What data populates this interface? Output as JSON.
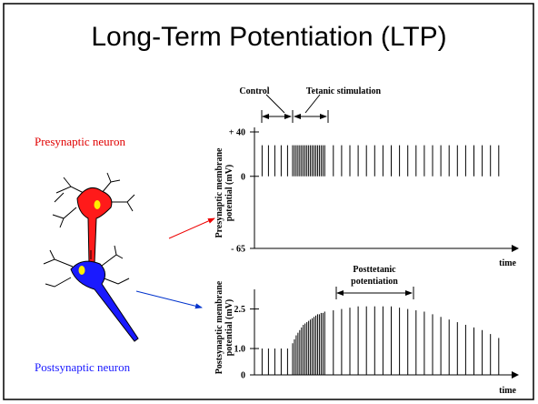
{
  "title": "Long-Term Potentiation (LTP)",
  "labels": {
    "presynaptic": "Presynaptic neuron",
    "postsynaptic": "Postsynaptic neuron"
  },
  "chart_data": [
    {
      "type": "spike",
      "ylabel": [
        "Presynaptic membrane",
        "potential (mV)"
      ],
      "xlabel": "time",
      "annotations": [
        "Control",
        "Tetanic stimulation"
      ],
      "xlim": [
        0,
        100
      ],
      "ylim": [
        -65,
        40
      ],
      "yticks": [
        {
          "value": 40,
          "label": "+ 40"
        },
        0,
        {
          "value": -65,
          "label": "- 65"
        }
      ],
      "color": "#000000",
      "x": [
        3,
        5.5,
        8,
        10.5,
        13,
        15,
        15.7,
        16.4,
        17.1,
        17.8,
        18.5,
        19.2,
        19.9,
        20.6,
        21.3,
        22,
        22.7,
        23.4,
        24.1,
        24.8,
        25.5,
        26.2,
        26.9,
        27.6,
        31,
        34.25,
        37.5,
        40.75,
        44,
        47.25,
        50.5,
        53.75,
        57,
        60.25,
        63.5,
        66.75,
        70,
        73.25,
        76.5,
        79.75,
        83,
        86.25,
        89.5,
        92.75,
        96
      ],
      "values": [
        28,
        28,
        28,
        28,
        28,
        28,
        28,
        28,
        28,
        28,
        28,
        28,
        28,
        28,
        28,
        28,
        28,
        28,
        28,
        28,
        28,
        28,
        28,
        28,
        28,
        28,
        28,
        28,
        28,
        28,
        28,
        28,
        28,
        28,
        28,
        28,
        28,
        28,
        28,
        28,
        28,
        28,
        28,
        28,
        28
      ]
    },
    {
      "type": "spike",
      "ylabel": [
        "Postsynaptic membrane",
        "potential (mV)"
      ],
      "xlabel": "time",
      "annotations": [
        "Posttetanic",
        "potentiation"
      ],
      "xlim": [
        0,
        100
      ],
      "ylim": [
        0,
        2.9
      ],
      "yticks": [
        {
          "value": 2.5,
          "label": "2.5"
        },
        {
          "value": 1,
          "label": "1.0"
        },
        0
      ],
      "color": "#000000",
      "x": [
        3,
        5.5,
        8,
        10.5,
        13,
        15,
        15.7,
        16.4,
        17.1,
        17.8,
        18.5,
        19.2,
        19.9,
        20.6,
        21.3,
        22,
        22.7,
        23.4,
        24.1,
        24.8,
        25.5,
        26.2,
        26.9,
        27.6,
        31,
        34.25,
        37.5,
        40.75,
        44,
        47.25,
        50.5,
        53.75,
        57,
        60.25,
        63.5,
        66.75,
        70,
        73.25,
        76.5,
        79.75,
        83,
        86.25,
        89.5,
        92.75,
        96
      ],
      "values": [
        1,
        1,
        1,
        1,
        1,
        1.2,
        1.35,
        1.5,
        1.6,
        1.7,
        1.8,
        1.9,
        1.95,
        2,
        2.05,
        2.1,
        2.15,
        2.2,
        2.25,
        2.3,
        2.3,
        2.35,
        2.35,
        2.4,
        2.45,
        2.5,
        2.55,
        2.6,
        2.6,
        2.6,
        2.6,
        2.6,
        2.55,
        2.5,
        2.45,
        2.4,
        2.3,
        2.2,
        2.1,
        2,
        1.9,
        1.8,
        1.7,
        1.55,
        1.4
      ]
    }
  ]
}
